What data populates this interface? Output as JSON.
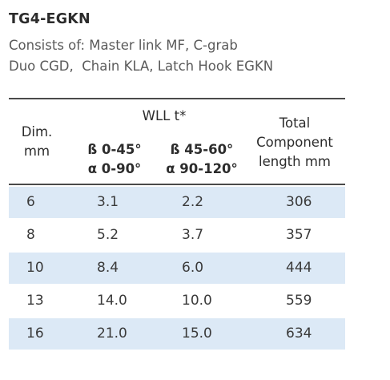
{
  "title": "TG4-EGKN",
  "subtitle_lines": [
    "Consists of: Master link MF, C-grab",
    "Duo CGD,  Chain KLA, Latch Hook EGKN"
  ],
  "table": {
    "header": {
      "dim": [
        "Dim.",
        "mm"
      ],
      "wll": "WLL t*",
      "beta1": "ß 0-45°",
      "alpha1": "α 0-90°",
      "beta2": "ß 45-60°",
      "alpha2": "α 90-120°",
      "total": [
        "Total",
        "Component",
        "length mm"
      ]
    },
    "rows": [
      [
        "6",
        "3.1",
        "2.2",
        "306"
      ],
      [
        "8",
        "5.2",
        "3.7",
        "357"
      ],
      [
        "10",
        "8.4",
        "6.0",
        "444"
      ],
      [
        "13",
        "14.0",
        "10.0",
        "559"
      ],
      [
        "16",
        "21.0",
        "15.0",
        "634"
      ]
    ],
    "row_shade_color": "#dce9f6"
  }
}
